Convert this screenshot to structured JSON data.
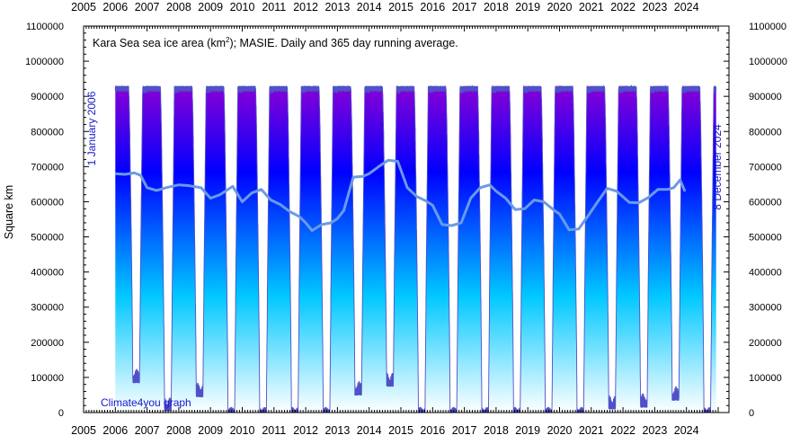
{
  "chart_data": {
    "type": "area",
    "title": "Kara Sea sea ice area (km",
    "title_sup": "2",
    "title_rest": "); MASIE. Daily and 365 day running average.",
    "ylabel": "Square km",
    "ylim": [
      0,
      1100000
    ],
    "y_ticks": [
      0,
      100000,
      200000,
      300000,
      400000,
      500000,
      600000,
      700000,
      800000,
      900000,
      1000000,
      1100000
    ],
    "y_tick_labels": [
      "0",
      "100000",
      "200000",
      "300000",
      "400000",
      "500000",
      "600000",
      "700000",
      "800000",
      "900000",
      "1000000",
      "1100000"
    ],
    "xlim": [
      2005,
      2025.25
    ],
    "x_tick_labels": [
      "2005",
      "2006",
      "2007",
      "2008",
      "2009",
      "2010",
      "2011",
      "2012",
      "2013",
      "2014",
      "2015",
      "2016",
      "2017",
      "2018",
      "2019",
      "2020",
      "2021",
      "2022",
      "2023",
      "2024"
    ],
    "start_annotation": "1 January 2006",
    "end_annotation": "8 December 2024",
    "credit": "Climate4you graph",
    "grid": false,
    "colors": {
      "daily_top": "#9400d3",
      "daily_mid": "#0000ff",
      "daily_low": "#00c8ff",
      "daily_bottom": "#ffffff",
      "daily_outline": "#5050c8",
      "running_avg": "#6a9ae6",
      "annotation": "#1818c8",
      "axis": "#000000"
    },
    "series": [
      {
        "series_kind": "daily_area",
        "seasonal_minima": [
          {
            "year": 2006,
            "min": 85000
          },
          {
            "year": 2007,
            "min": 5000
          },
          {
            "year": 2008,
            "min": 45000
          },
          {
            "year": 2009,
            "min": 0
          },
          {
            "year": 2010,
            "min": 0
          },
          {
            "year": 2011,
            "min": 0
          },
          {
            "year": 2012,
            "min": 0
          },
          {
            "year": 2013,
            "min": 50000
          },
          {
            "year": 2014,
            "min": 75000
          },
          {
            "year": 2015,
            "min": 0
          },
          {
            "year": 2016,
            "min": 0
          },
          {
            "year": 2017,
            "min": 0
          },
          {
            "year": 2018,
            "min": 0
          },
          {
            "year": 2019,
            "min": 0
          },
          {
            "year": 2020,
            "min": 0
          },
          {
            "year": 2021,
            "min": 10000
          },
          {
            "year": 2022,
            "min": 15000
          },
          {
            "year": 2023,
            "min": 35000
          },
          {
            "year": 2024,
            "min": 0
          }
        ],
        "winter_max": 930000
      },
      {
        "series_kind": "running_average",
        "x": [
          2006.0,
          2006.3,
          2006.6,
          2006.8,
          2007.0,
          2007.3,
          2007.6,
          2008.0,
          2008.3,
          2008.7,
          2009.0,
          2009.3,
          2009.7,
          2010.0,
          2010.3,
          2010.6,
          2010.9,
          2011.2,
          2011.5,
          2011.8,
          2012.0,
          2012.2,
          2012.5,
          2012.8,
          2013.0,
          2013.2,
          2013.5,
          2013.8,
          2014.0,
          2014.3,
          2014.6,
          2014.9,
          2015.2,
          2015.5,
          2015.8,
          2016.0,
          2016.3,
          2016.6,
          2016.9,
          2017.2,
          2017.5,
          2017.8,
          2018.0,
          2018.3,
          2018.6,
          2018.9,
          2019.2,
          2019.5,
          2019.8,
          2020.0,
          2020.3,
          2020.6,
          2020.9,
          2021.2,
          2021.5,
          2021.8,
          2022.2,
          2022.5,
          2022.8,
          2023.1,
          2023.4,
          2023.6,
          2023.8,
          2023.95
        ],
        "y": [
          680000,
          678000,
          682000,
          675000,
          640000,
          632000,
          640000,
          648000,
          646000,
          640000,
          610000,
          620000,
          644000,
          600000,
          625000,
          635000,
          605000,
          592000,
          572000,
          558000,
          540000,
          518000,
          535000,
          540000,
          552000,
          575000,
          670000,
          672000,
          680000,
          700000,
          718000,
          715000,
          640000,
          615000,
          602000,
          590000,
          535000,
          532000,
          540000,
          610000,
          640000,
          648000,
          630000,
          610000,
          578000,
          580000,
          605000,
          600000,
          578000,
          565000,
          520000,
          522000,
          560000,
          600000,
          638000,
          630000,
          598000,
          597000,
          612000,
          635000,
          635000,
          640000,
          662000,
          630000
        ]
      }
    ]
  }
}
